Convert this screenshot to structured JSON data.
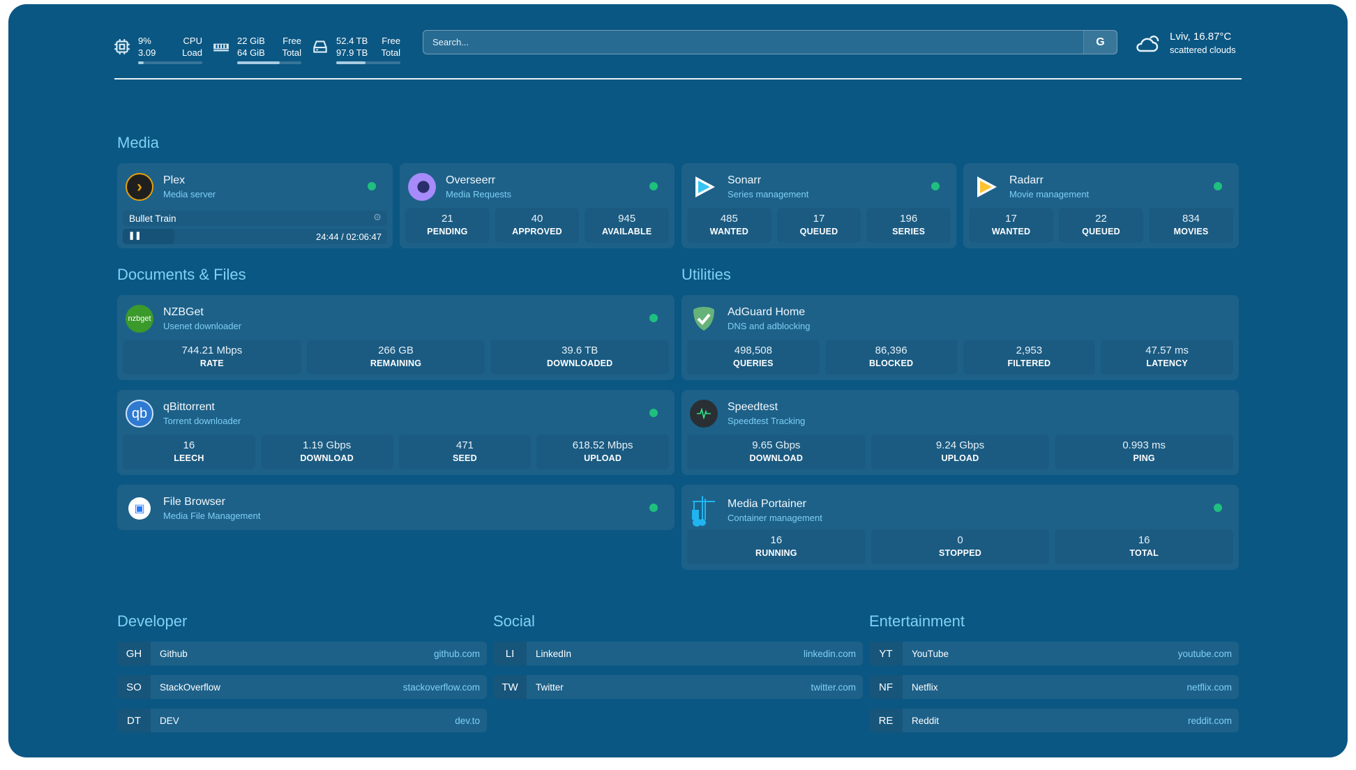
{
  "header": {
    "cpu": {
      "icon": "cpu-icon",
      "value1": "9%",
      "label1": "CPU",
      "value2": "3.09",
      "label2": "Load",
      "usage": 0.09
    },
    "memory": {
      "icon": "memory-icon",
      "value1": "22 GiB",
      "label1": "Free",
      "value2": "64 GiB",
      "label2": "Total",
      "usage": 0.66
    },
    "disk": {
      "icon": "disk-icon",
      "value1": "52.4 TB",
      "label1": "Free",
      "value2": "97.9 TB",
      "label2": "Total",
      "usage": 0.46
    },
    "search": {
      "placeholder": "Search...",
      "engine_label": "G"
    },
    "weather": {
      "icon": "cloud-sun-icon",
      "location_temp": "Lviv, 16.87°C",
      "condition": "scattered clouds"
    }
  },
  "colors": {
    "background": "#0b5783",
    "card": "#1d6189",
    "heading": "#7ed2f5",
    "status_online": "#1fbf7e"
  },
  "sections": {
    "media": "Media",
    "documents": "Documents & Files",
    "utilities": "Utilities",
    "developer": "Developer",
    "social": "Social",
    "entertainment": "Entertainment"
  },
  "services": {
    "plex": {
      "name": "Plex",
      "sub": "Media server",
      "now_playing": {
        "title": "Bullet Train",
        "time": "24:44 / 02:06:47",
        "progress": 0.195
      }
    },
    "overseerr": {
      "name": "Overseerr",
      "sub": "Media Requests",
      "stats": [
        {
          "v": "21",
          "l": "PENDING"
        },
        {
          "v": "40",
          "l": "APPROVED"
        },
        {
          "v": "945",
          "l": "AVAILABLE"
        }
      ]
    },
    "sonarr": {
      "name": "Sonarr",
      "sub": "Series management",
      "stats": [
        {
          "v": "485",
          "l": "WANTED"
        },
        {
          "v": "17",
          "l": "QUEUED"
        },
        {
          "v": "196",
          "l": "SERIES"
        }
      ]
    },
    "radarr": {
      "name": "Radarr",
      "sub": "Movie management",
      "stats": [
        {
          "v": "17",
          "l": "WANTED"
        },
        {
          "v": "22",
          "l": "QUEUED"
        },
        {
          "v": "834",
          "l": "MOVIES"
        }
      ]
    },
    "nzbget": {
      "name": "NZBGet",
      "sub": "Usenet downloader",
      "logo_text": "nzbget",
      "stats": [
        {
          "v": "744.21 Mbps",
          "l": "RATE"
        },
        {
          "v": "266 GB",
          "l": "REMAINING"
        },
        {
          "v": "39.6 TB",
          "l": "DOWNLOADED"
        }
      ]
    },
    "qbittorrent": {
      "name": "qBittorrent",
      "sub": "Torrent downloader",
      "logo_text": "qb",
      "stats": [
        {
          "v": "16",
          "l": "LEECH"
        },
        {
          "v": "1.19 Gbps",
          "l": "DOWNLOAD"
        },
        {
          "v": "471",
          "l": "SEED"
        },
        {
          "v": "618.52 Mbps",
          "l": "UPLOAD"
        }
      ]
    },
    "filebrowser": {
      "name": "File Browser",
      "sub": "Media File Management"
    },
    "adguard": {
      "name": "AdGuard Home",
      "sub": "DNS and adblocking",
      "stats": [
        {
          "v": "498,508",
          "l": "QUERIES"
        },
        {
          "v": "86,396",
          "l": "BLOCKED"
        },
        {
          "v": "2,953",
          "l": "FILTERED"
        },
        {
          "v": "47.57 ms",
          "l": "LATENCY"
        }
      ]
    },
    "speedtest": {
      "name": "Speedtest",
      "sub": "Speedtest Tracking",
      "stats": [
        {
          "v": "9.65 Gbps",
          "l": "DOWNLOAD"
        },
        {
          "v": "9.24 Gbps",
          "l": "UPLOAD"
        },
        {
          "v": "0.993 ms",
          "l": "PING"
        }
      ]
    },
    "portainer": {
      "name": "Media Portainer",
      "sub": "Container management",
      "stats": [
        {
          "v": "16",
          "l": "RUNNING"
        },
        {
          "v": "0",
          "l": "STOPPED"
        },
        {
          "v": "16",
          "l": "TOTAL"
        }
      ]
    }
  },
  "bookmarks": {
    "developer": [
      {
        "abbr": "GH",
        "name": "Github",
        "url": "github.com"
      },
      {
        "abbr": "SO",
        "name": "StackOverflow",
        "url": "stackoverflow.com"
      },
      {
        "abbr": "DT",
        "name": "DEV",
        "url": "dev.to"
      }
    ],
    "social": [
      {
        "abbr": "LI",
        "name": "LinkedIn",
        "url": "linkedin.com"
      },
      {
        "abbr": "TW",
        "name": "Twitter",
        "url": "twitter.com"
      }
    ],
    "entertainment": [
      {
        "abbr": "YT",
        "name": "YouTube",
        "url": "youtube.com"
      },
      {
        "abbr": "NF",
        "name": "Netflix",
        "url": "netflix.com"
      },
      {
        "abbr": "RE",
        "name": "Reddit",
        "url": "reddit.com"
      }
    ]
  }
}
